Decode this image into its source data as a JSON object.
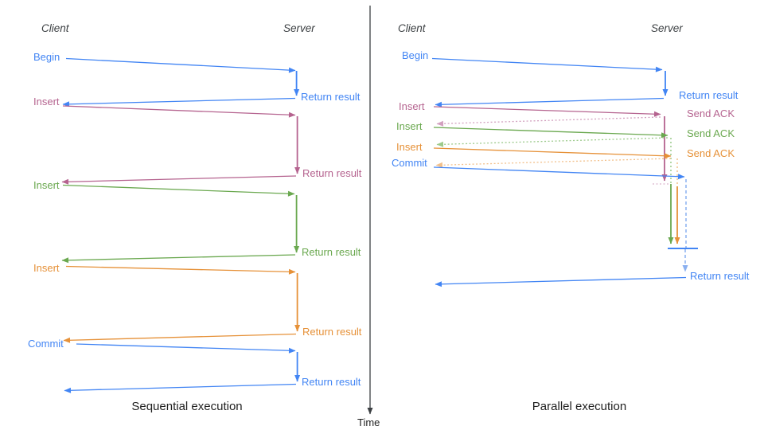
{
  "colors": {
    "blue": "#4285f4",
    "pink": "#b5638f",
    "green": "#6aa84f",
    "orange": "#e69138",
    "blue_light": "#8ab0f0",
    "pink_light": "#d2a0bf",
    "green_light": "#9cca8b",
    "orange_light": "#f2c08b",
    "axis": "#3c4043"
  },
  "left": {
    "client": "Client",
    "server": "Server",
    "caption": "Sequential execution",
    "rows": [
      {
        "label": "Begin",
        "color": "blue",
        "result": "Return result"
      },
      {
        "label": "Insert",
        "color": "pink",
        "result": "Return result"
      },
      {
        "label": "Insert",
        "color": "green",
        "result": "Return result"
      },
      {
        "label": "Insert",
        "color": "orange",
        "result": "Return result"
      },
      {
        "label": "Commit",
        "color": "blue",
        "result": "Return result"
      }
    ]
  },
  "right": {
    "client": "Client",
    "server": "Server",
    "caption": "Parallel execution",
    "rows": [
      {
        "label": "Begin",
        "color": "blue",
        "result": "Return result"
      },
      {
        "label": "Insert",
        "color": "pink",
        "result": "Send ACK"
      },
      {
        "label": "Insert",
        "color": "green",
        "result": "Send ACK"
      },
      {
        "label": "Insert",
        "color": "orange",
        "result": "Send ACK"
      },
      {
        "label": "Commit",
        "color": "blue",
        "result": "Return result"
      }
    ]
  },
  "time_axis": {
    "label": "Time"
  }
}
